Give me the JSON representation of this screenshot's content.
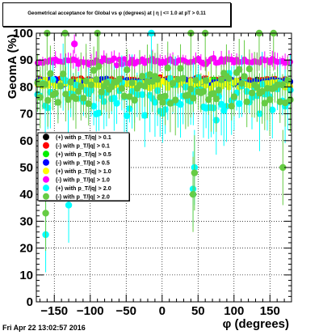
{
  "chart_data": {
    "type": "scatter",
    "title": "Geometrical acceptance for Global vs φ (degrees) at | η | <= 1.0 at pT > 0.11",
    "xlabel": "φ (degrees)",
    "ylabel": "GeomA (%)",
    "xlim": [
      -175,
      180
    ],
    "ylim": [
      0,
      100
    ],
    "x_ticks": [
      -150,
      -100,
      -50,
      0,
      50,
      100,
      150
    ],
    "x_tick_labels": [
      "−150",
      "−100",
      "−50",
      "0",
      "50",
      "100",
      "150"
    ],
    "y_ticks": [
      0,
      10,
      20,
      30,
      40,
      50,
      60,
      70,
      80,
      90,
      100
    ],
    "y_tick_labels": [
      "0",
      "10",
      "20",
      "30",
      "40",
      "50",
      "60",
      "70",
      "80",
      "90",
      "100"
    ],
    "grid": true,
    "legend_position": "middle-left",
    "series": [
      {
        "name": "(+) with p_T/|q| > 0.1",
        "color": "#000000",
        "marker": "circle",
        "mean": 82,
        "spread": 1.2,
        "err": 1.2,
        "n": 100
      },
      {
        "name": "(-) with p_T/|q| > 0.1",
        "color": "#ff0000",
        "marker": "circle",
        "mean": 82.5,
        "spread": 1.2,
        "err": 1.2,
        "n": 100
      },
      {
        "name": "(+) with p_T/|q| > 0.5",
        "color": "#00ee00",
        "marker": "circle",
        "mean": 81.5,
        "spread": 1.4,
        "err": 1.4,
        "n": 100
      },
      {
        "name": "(-) with p_T/|q| > 0.5",
        "color": "#0000ff",
        "marker": "circle",
        "mean": 82,
        "spread": 1.4,
        "err": 1.4,
        "n": 100
      },
      {
        "name": "(+) with p_T/|q| > 1.0",
        "color": "#ffff00",
        "marker": "circle",
        "mean": 81,
        "spread": 2.5,
        "err": 2.5,
        "n": 100
      },
      {
        "name": "(-) with p_T/|q| > 1.0",
        "color": "#ff00ff",
        "marker": "circle",
        "mean": 89.5,
        "spread": 1.8,
        "err": 2.5,
        "n": 100
      },
      {
        "name": "(+) with p_T/|q| > 2.0",
        "color": "#00ffff",
        "marker": "circle",
        "mean": 75,
        "spread": 12,
        "err": 10,
        "n": 100
      },
      {
        "name": "(-) with p_T/|q| > 2.0",
        "color": "#66cc44",
        "marker": "circle",
        "mean": 80,
        "spread": 11,
        "err": 10,
        "n": 100
      }
    ],
    "notable_points": [
      {
        "series": 6,
        "x": -162,
        "y": 25
      },
      {
        "series": 7,
        "x": -162,
        "y": 33
      },
      {
        "series": 6,
        "x": -130,
        "y": 36
      },
      {
        "series": 6,
        "x": 43,
        "y": 42
      },
      {
        "series": 7,
        "x": 43,
        "y": 40
      },
      {
        "series": 7,
        "x": 168,
        "y": 50
      },
      {
        "series": 6,
        "x": 45,
        "y": 50
      },
      {
        "series": 7,
        "x": 45,
        "y": 48
      },
      {
        "series": 7,
        "x": -160,
        "y": 100
      },
      {
        "series": 7,
        "x": -135,
        "y": 100
      },
      {
        "series": 7,
        "x": -90,
        "y": 100
      },
      {
        "series": 6,
        "x": -15,
        "y": 100
      },
      {
        "series": 7,
        "x": 40,
        "y": 100
      },
      {
        "series": 7,
        "x": 60,
        "y": 100
      },
      {
        "series": 7,
        "x": 135,
        "y": 100
      },
      {
        "series": 7,
        "x": 155,
        "y": 100
      },
      {
        "series": 5,
        "x": -122,
        "y": 96
      }
    ]
  },
  "footer": {
    "timestamp": "Fri Apr 22 13:02:57 2016"
  }
}
